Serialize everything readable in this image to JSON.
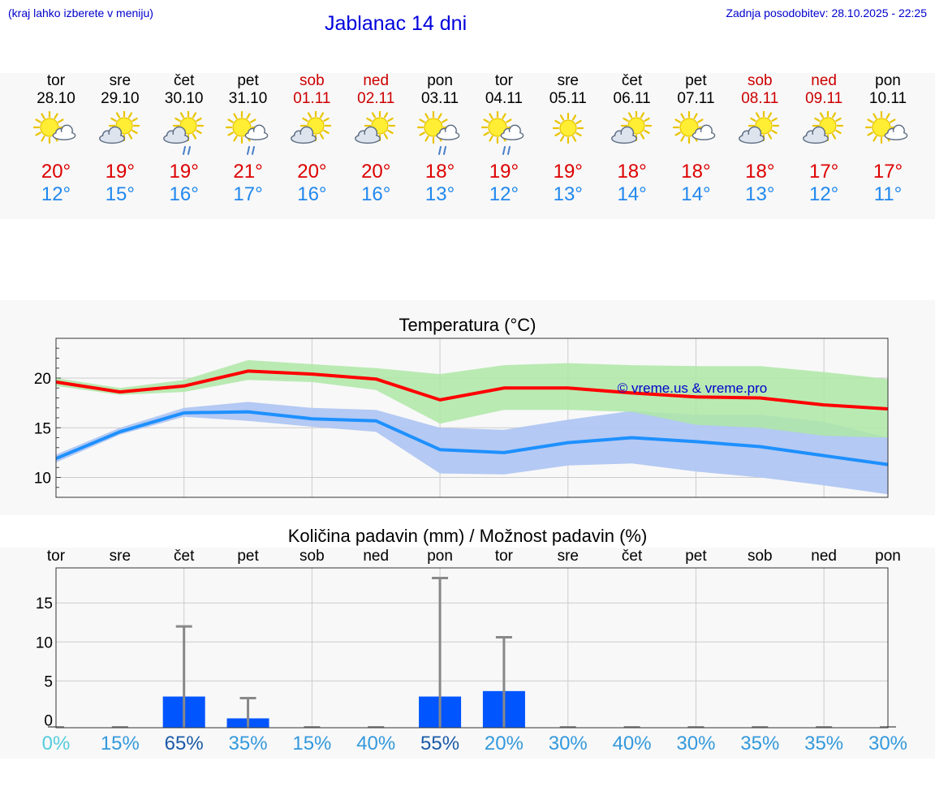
{
  "header": {
    "location_hint": "(kraj lahko izberete v meniju)",
    "title": "Jablanac 14 dni",
    "updated": "Zadnja posodobitev: 28.10.2025 - 22:25"
  },
  "days": [
    {
      "name": "tor",
      "date": "28.10",
      "weekend": false,
      "icon": "sun-cloud-icon",
      "rain": false,
      "tmax": "20°",
      "tmin": "12°"
    },
    {
      "name": "sre",
      "date": "29.10",
      "weekend": false,
      "icon": "partly-cloudy-icon",
      "rain": false,
      "tmax": "19°",
      "tmin": "15°"
    },
    {
      "name": "čet",
      "date": "30.10",
      "weekend": false,
      "icon": "partly-cloudy-rain-icon",
      "rain": true,
      "tmax": "19°",
      "tmin": "16°"
    },
    {
      "name": "pet",
      "date": "31.10",
      "weekend": false,
      "icon": "sun-cloud-rain-icon",
      "rain": true,
      "tmax": "21°",
      "tmin": "17°"
    },
    {
      "name": "sob",
      "date": "01.11",
      "weekend": true,
      "icon": "partly-cloudy-icon",
      "rain": false,
      "tmax": "20°",
      "tmin": "16°"
    },
    {
      "name": "ned",
      "date": "02.11",
      "weekend": true,
      "icon": "partly-cloudy-icon",
      "rain": false,
      "tmax": "20°",
      "tmin": "16°"
    },
    {
      "name": "pon",
      "date": "03.11",
      "weekend": false,
      "icon": "sun-cloud-rain-icon",
      "rain": true,
      "tmax": "18°",
      "tmin": "13°"
    },
    {
      "name": "tor",
      "date": "04.11",
      "weekend": false,
      "icon": "sun-cloud-rain-icon",
      "rain": true,
      "tmax": "19°",
      "tmin": "12°"
    },
    {
      "name": "sre",
      "date": "05.11",
      "weekend": false,
      "icon": "sun-icon",
      "rain": false,
      "tmax": "19°",
      "tmin": "13°"
    },
    {
      "name": "čet",
      "date": "06.11",
      "weekend": false,
      "icon": "partly-cloudy-icon",
      "rain": false,
      "tmax": "18°",
      "tmin": "14°"
    },
    {
      "name": "pet",
      "date": "07.11",
      "weekend": false,
      "icon": "sun-cloud-icon",
      "rain": false,
      "tmax": "18°",
      "tmin": "14°"
    },
    {
      "name": "sob",
      "date": "08.11",
      "weekend": true,
      "icon": "partly-cloudy-icon",
      "rain": false,
      "tmax": "18°",
      "tmin": "13°"
    },
    {
      "name": "ned",
      "date": "09.11",
      "weekend": true,
      "icon": "partly-cloudy-icon",
      "rain": false,
      "tmax": "17°",
      "tmin": "12°"
    },
    {
      "name": "pon",
      "date": "10.11",
      "weekend": false,
      "icon": "sun-cloud-icon",
      "rain": false,
      "tmax": "17°",
      "tmin": "11°"
    }
  ],
  "colors": {
    "max_line": "#ff0000",
    "max_band": "#aee8a6",
    "min_line": "#1e90ff",
    "min_band": "#b0c6f2",
    "bar": "#0055ff",
    "whisker": "#888888",
    "weekend": "#cc0000",
    "watermark": "#0000cc"
  },
  "chart_data": [
    {
      "type": "line",
      "title": "Temperatura (°C)",
      "watermark": "© vreme.us & vreme.pro",
      "categories": [
        "28.10",
        "29.10",
        "30.10",
        "31.10",
        "01.11",
        "02.11",
        "03.11",
        "04.11",
        "05.11",
        "06.11",
        "07.11",
        "08.11",
        "09.11",
        "10.11"
      ],
      "ylim": [
        8,
        24
      ],
      "yticks": [
        10,
        15,
        20
      ],
      "series": [
        {
          "name": "max",
          "values": [
            19.6,
            18.6,
            19.2,
            20.7,
            20.4,
            19.9,
            17.8,
            19.0,
            19.0,
            18.5,
            18.1,
            18.0,
            17.3,
            16.9
          ],
          "band_low": [
            19.2,
            18.3,
            18.6,
            19.8,
            19.6,
            18.8,
            15.4,
            16.8,
            16.8,
            16.6,
            15.3,
            15.0,
            14.2,
            14.0
          ],
          "band_high": [
            20.0,
            19.0,
            19.8,
            21.8,
            21.4,
            21.0,
            20.4,
            21.3,
            21.5,
            21.3,
            21.2,
            21.2,
            20.6,
            19.9
          ]
        },
        {
          "name": "min",
          "values": [
            11.9,
            14.6,
            16.5,
            16.6,
            15.9,
            15.7,
            12.8,
            12.5,
            13.5,
            14.0,
            13.6,
            13.1,
            12.2,
            11.3
          ],
          "band_low": [
            11.5,
            14.3,
            16.1,
            15.7,
            15.1,
            14.6,
            10.4,
            10.3,
            11.2,
            11.4,
            10.6,
            10.0,
            9.2,
            8.3
          ],
          "band_high": [
            12.3,
            15.0,
            17.0,
            17.6,
            17.0,
            16.8,
            15.0,
            14.8,
            15.8,
            16.7,
            16.3,
            16.3,
            15.6,
            14.0
          ]
        }
      ]
    },
    {
      "type": "bar",
      "title": "Količina padavin (mm) / Možnost padavin (%)",
      "categories": [
        "tor",
        "sre",
        "čet",
        "pet",
        "sob",
        "ned",
        "pon",
        "tor",
        "sre",
        "čet",
        "pet",
        "sob",
        "ned",
        "pon"
      ],
      "ylim": [
        -1,
        19.5
      ],
      "yticks": [
        0,
        5,
        10,
        15
      ],
      "values": [
        0,
        0,
        3.0,
        0.2,
        0,
        0,
        3.0,
        3.7,
        0,
        0,
        0,
        0,
        0,
        0
      ],
      "whisker_max": [
        0,
        0,
        12.0,
        2.8,
        0,
        0,
        18.2,
        10.6,
        0,
        0,
        0,
        0,
        0,
        0
      ],
      "probabilities": [
        "0%",
        "15%",
        "65%",
        "35%",
        "15%",
        "40%",
        "55%",
        "20%",
        "30%",
        "40%",
        "30%",
        "35%",
        "35%",
        "30%"
      ],
      "probability_values": [
        0,
        15,
        65,
        35,
        15,
        40,
        55,
        20,
        30,
        40,
        30,
        35,
        35,
        30
      ]
    }
  ]
}
